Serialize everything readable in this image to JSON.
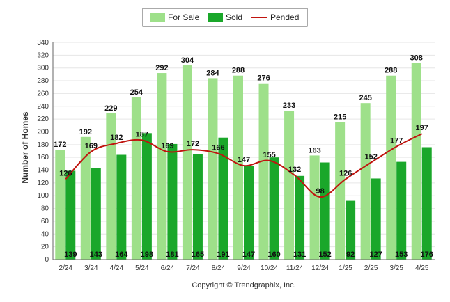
{
  "chart_data": {
    "type": "bar",
    "categories": [
      "2/24",
      "3/24",
      "4/24",
      "5/24",
      "6/24",
      "7/24",
      "8/24",
      "9/24",
      "10/24",
      "11/24",
      "12/24",
      "1/25",
      "2/25",
      "3/25",
      "4/25"
    ],
    "series": [
      {
        "name": "For Sale",
        "type": "bar",
        "color": "#9ee08a",
        "values": [
          172,
          192,
          229,
          254,
          292,
          304,
          284,
          288,
          276,
          233,
          163,
          215,
          245,
          288,
          308
        ]
      },
      {
        "name": "Sold",
        "type": "bar",
        "color": "#1aa72a",
        "values": [
          139,
          143,
          164,
          198,
          181,
          165,
          191,
          147,
          160,
          131,
          152,
          92,
          127,
          153,
          176
        ]
      },
      {
        "name": "Pended",
        "type": "line",
        "color": "#c0140f",
        "values": [
          126,
          169,
          182,
          187,
          169,
          172,
          166,
          147,
          155,
          132,
          98,
          126,
          152,
          177,
          197
        ]
      }
    ],
    "ylabel": "Number of Homes",
    "xlabel": "",
    "ylim": [
      0,
      340
    ],
    "yticks": [
      0,
      20,
      40,
      60,
      80,
      100,
      120,
      140,
      160,
      180,
      200,
      220,
      240,
      260,
      280,
      300,
      320,
      340
    ],
    "grid": true,
    "legend_position": "top-center",
    "footer": "Copyright © Trendgraphix, Inc."
  }
}
